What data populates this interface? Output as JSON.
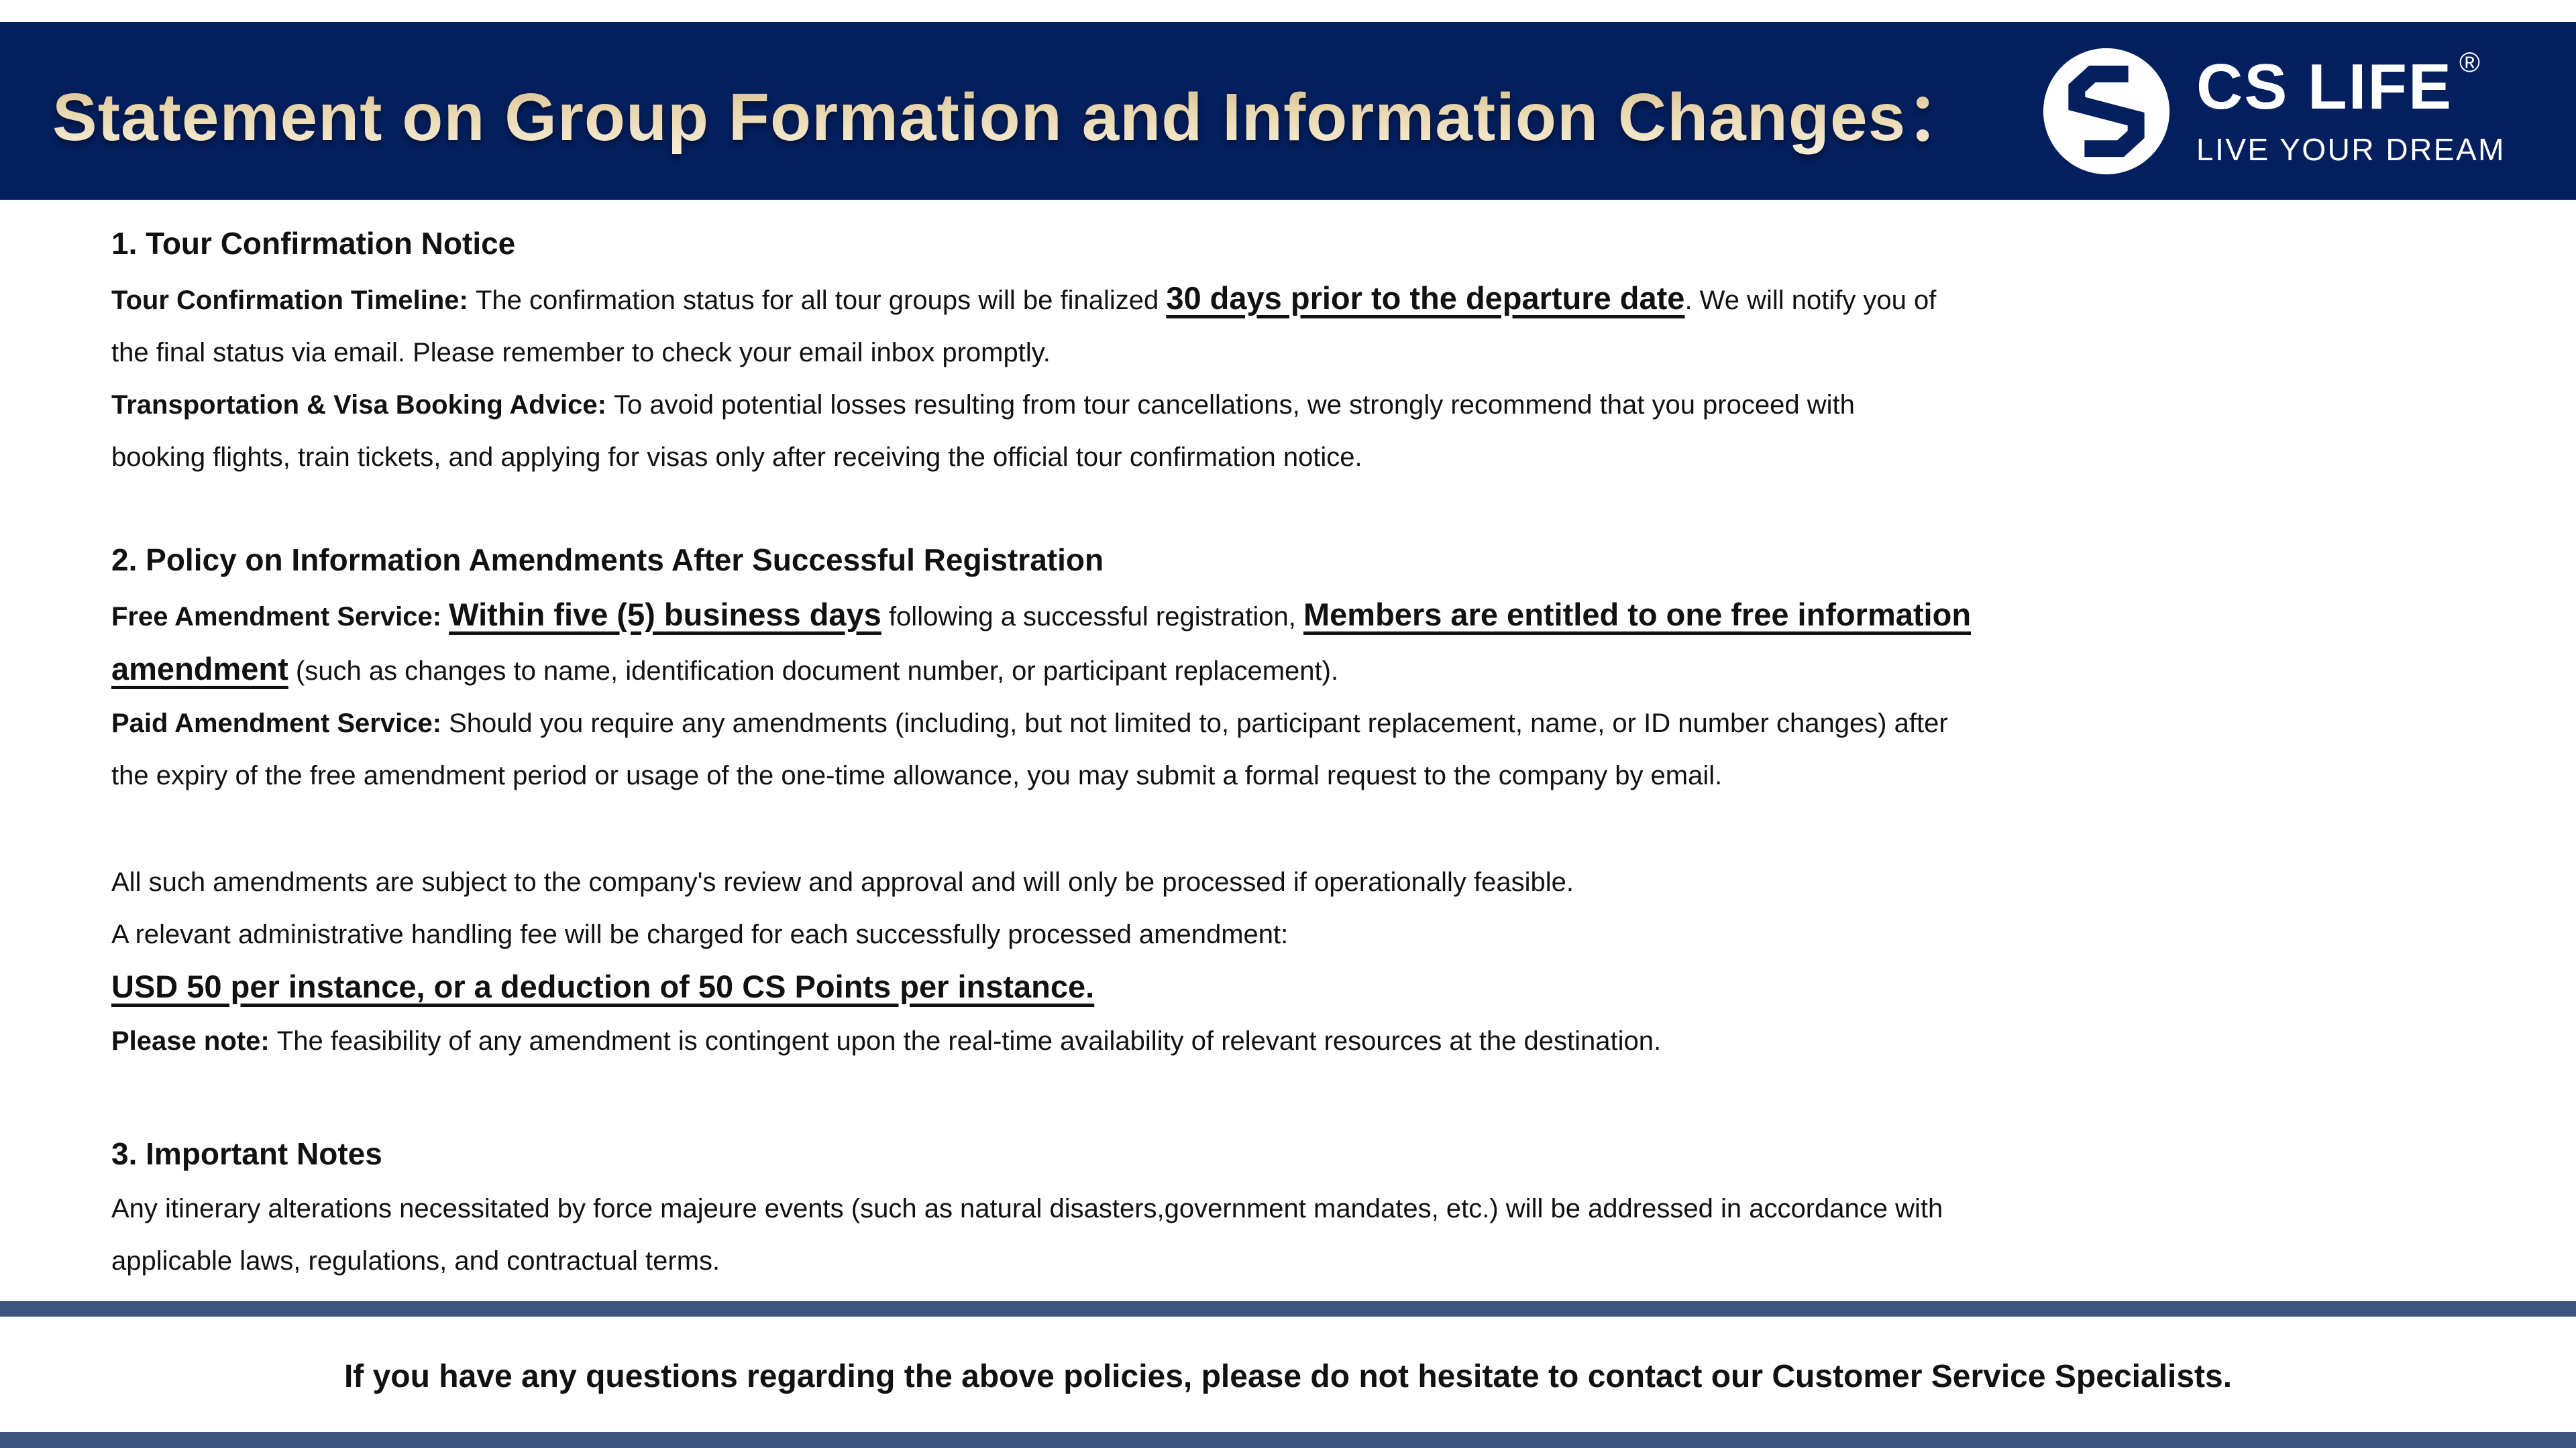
{
  "header": {
    "title": "Statement on Group Formation and Information Changes：",
    "logo": {
      "brand": "CS LIFE",
      "registered_mark": "®",
      "tagline": "LIVE YOUR DREAM",
      "icon": "cs-monogram-icon"
    }
  },
  "colors": {
    "header_navy": "#041f5e",
    "title_gold": "#e7d4aa",
    "divider_blue": "#3e5480",
    "body_text": "#111111"
  },
  "body": {
    "blocks": [
      {
        "name": "section-1-heading",
        "type": "heading",
        "lines": [
          [
            {
              "text": "1. Tour Confirmation Notice",
              "style": "normal"
            }
          ]
        ]
      },
      {
        "name": "tour-confirmation-paragraph",
        "type": "para",
        "lines": [
          [
            {
              "text": "Tour Confirmation Timeline: ",
              "style": "bold"
            },
            {
              "text": "The confirmation status for all tour groups will be finalized ",
              "style": "normal"
            },
            {
              "text": "30 days prior to the departure date",
              "style": "em"
            },
            {
              "text": ". We will notify you of",
              "style": "normal"
            }
          ],
          [
            {
              "text": "the final status via email. Please remember to check your email inbox promptly.",
              "style": "normal"
            }
          ],
          [
            {
              "text": "Transportation & Visa Booking Advice: ",
              "style": "bold"
            },
            {
              "text": "To avoid potential losses resulting from tour cancellations, we strongly recommend that you proceed with",
              "style": "normal"
            }
          ],
          [
            {
              "text": "booking flights, train tickets, and applying for visas only after receiving the official tour confirmation notice.",
              "style": "normal"
            }
          ]
        ]
      },
      {
        "name": "section-2-heading",
        "type": "heading",
        "lines": [
          [
            {
              "text": "2. Policy on Information Amendments After Successful Registration",
              "style": "normal"
            }
          ]
        ]
      },
      {
        "name": "amendment-services-paragraph",
        "type": "para",
        "lines": [
          [
            {
              "text": "Free Amendment Service: ",
              "style": "bold"
            },
            {
              "text": "Within five (5) business days",
              "style": "em"
            },
            {
              "text": " following a successful registration, ",
              "style": "normal"
            },
            {
              "text": "Members are entitled to one free information",
              "style": "em"
            }
          ],
          [
            {
              "text": "amendment",
              "style": "em"
            },
            {
              "text": " (such as changes to name, identification document number, or participant replacement).",
              "style": "normal"
            }
          ],
          [
            {
              "text": "Paid Amendment Service: ",
              "style": "bold"
            },
            {
              "text": "Should you require any amendments (including, but not limited to, participant replacement, name, or ID number changes) after",
              "style": "normal"
            }
          ],
          [
            {
              "text": "the expiry of the free amendment period or usage of the one-time allowance, you may submit a formal request to the company by email.",
              "style": "normal"
            }
          ]
        ]
      },
      {
        "name": "fees-paragraph",
        "type": "para",
        "lines": [
          [
            {
              "text": "All such amendments are subject to the company's review and approval and will only be processed if operationally feasible.",
              "style": "normal"
            }
          ],
          [
            {
              "text": "A relevant administrative handling fee will be charged for each successfully processed amendment:",
              "style": "normal"
            }
          ],
          [
            {
              "text": "USD 50 per instance, or a deduction of 50 CS Points per instance.",
              "style": "em"
            }
          ],
          [
            {
              "text": "Please note: ",
              "style": "bold"
            },
            {
              "text": "The feasibility of any amendment is contingent upon the real-time availability of relevant resources at the destination.",
              "style": "normal"
            }
          ]
        ]
      },
      {
        "name": "section-3-heading",
        "type": "heading",
        "lines": [
          [
            {
              "text": "3. Important Notes",
              "style": "normal"
            }
          ]
        ]
      },
      {
        "name": "important-notes-paragraph",
        "type": "para",
        "lines": [
          [
            {
              "text": "Any itinerary alterations necessitated by force majeure events (such as natural disasters,government mandates, etc.) will be addressed in accordance with",
              "style": "normal"
            }
          ],
          [
            {
              "text": "applicable laws, regulations, and contractual terms.",
              "style": "normal"
            }
          ]
        ]
      }
    ]
  },
  "footer": {
    "message": "If you have any questions regarding the above policies, please do not hesitate to contact our Customer Service Specialists."
  }
}
